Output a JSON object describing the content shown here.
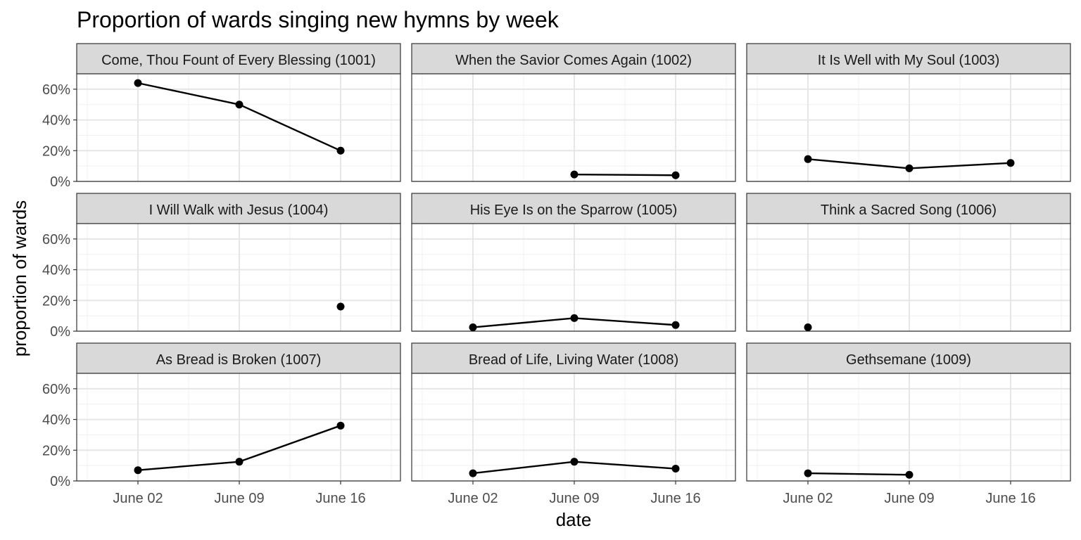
{
  "chart_data": {
    "type": "line",
    "title": "Proportion of wards singing new hymns by week",
    "xlabel": "date",
    "ylabel": "proportion of wards",
    "x_categories": [
      "June 02",
      "June 09",
      "June 16"
    ],
    "y_ticks": [
      "0%",
      "20%",
      "40%",
      "60%"
    ],
    "ylim": [
      0,
      0.7
    ],
    "grid": true,
    "facets": [
      {
        "name": "Come, Thou Fount of Every Blessing (1001)",
        "values": [
          0.64,
          0.5,
          0.2
        ]
      },
      {
        "name": "When the Savior Comes Again (1002)",
        "values": [
          null,
          0.045,
          0.04
        ]
      },
      {
        "name": "It Is Well with My Soul (1003)",
        "values": [
          0.145,
          0.085,
          0.12
        ]
      },
      {
        "name": "I Will Walk with Jesus (1004)",
        "values": [
          null,
          null,
          0.16
        ]
      },
      {
        "name": "His Eye Is on the Sparrow (1005)",
        "values": [
          0.025,
          0.085,
          0.04
        ]
      },
      {
        "name": "Think a Sacred Song (1006)",
        "values": [
          0.025,
          null,
          null
        ]
      },
      {
        "name": "As Bread is Broken (1007)",
        "values": [
          0.07,
          0.125,
          0.36
        ]
      },
      {
        "name": "Bread of Life, Living Water (1008)",
        "values": [
          0.05,
          0.125,
          0.08
        ]
      },
      {
        "name": "Gethsemane (1009)",
        "values": [
          0.05,
          0.04,
          null
        ]
      }
    ]
  }
}
